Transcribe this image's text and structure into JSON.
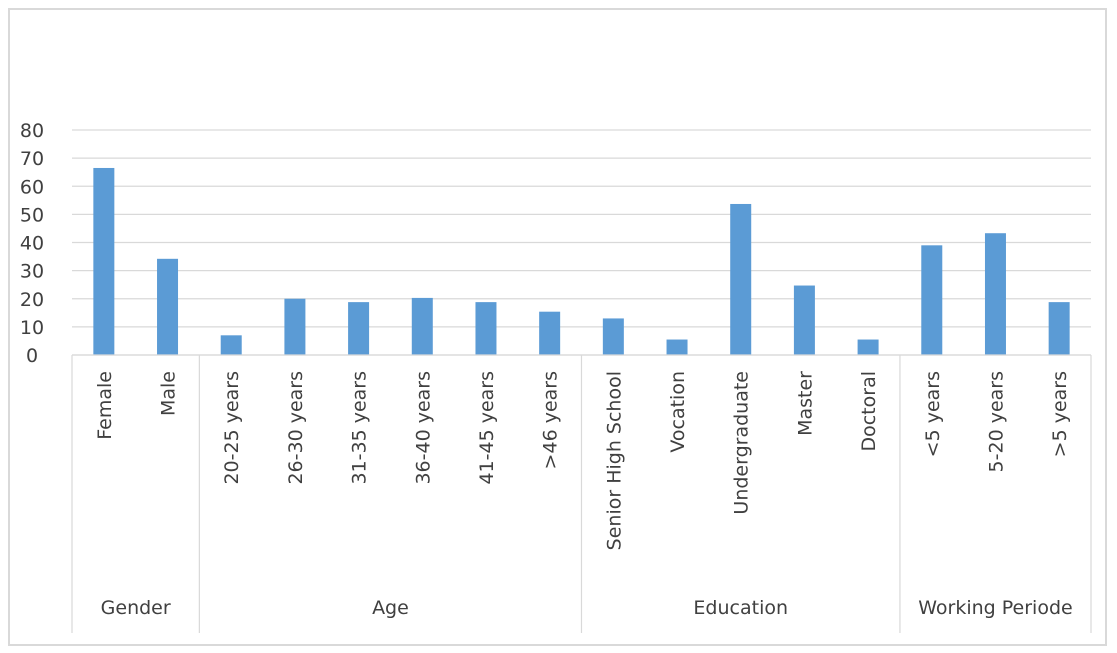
{
  "chart_data": {
    "type": "bar",
    "title": "",
    "xlabel": "",
    "ylabel": "",
    "ylim": [
      0,
      80
    ],
    "yticks": [
      0,
      10,
      20,
      30,
      40,
      50,
      60,
      70,
      80
    ],
    "grid": true,
    "bar_color": "#5b9bd5",
    "groups": [
      {
        "label": "Gender",
        "categories": [
          "Female",
          "Male"
        ],
        "values": [
          66.5,
          34.2
        ]
      },
      {
        "label": "Age",
        "categories": [
          "20-25 years",
          "26-30 years",
          "31-35 years",
          "36-40 years",
          "41-45 years",
          ">46 years"
        ],
        "values": [
          7,
          20,
          18.8,
          20.3,
          18.8,
          15.4
        ]
      },
      {
        "label": "Education",
        "categories": [
          "Senior High School",
          "Vocation",
          "Undergraduate",
          "Master",
          "Doctoral"
        ],
        "values": [
          13,
          5.5,
          53.7,
          24.7,
          5.5
        ]
      },
      {
        "label": "Working Periode",
        "categories": [
          "<5 years",
          "5-20 years",
          ">5 years"
        ],
        "values": [
          39,
          43.3,
          18.8
        ]
      }
    ]
  }
}
